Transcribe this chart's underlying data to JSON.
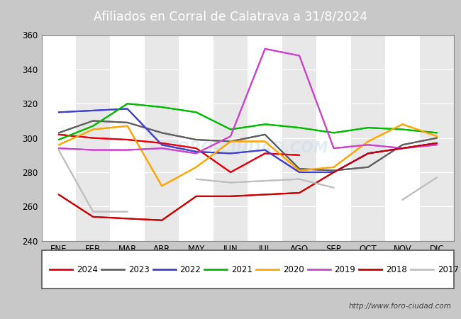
{
  "title": "Afiliados en Corral de Calatrava a 31/8/2024",
  "title_bg": "#4472c4",
  "watermark": "http://www.foro-ciudad.com",
  "ylim": [
    240,
    360
  ],
  "yticks": [
    240,
    260,
    280,
    300,
    320,
    340,
    360
  ],
  "months": [
    "ENE",
    "FEB",
    "MAR",
    "ABR",
    "MAY",
    "JUN",
    "JUL",
    "AGO",
    "SEP",
    "OCT",
    "NOV",
    "DIC"
  ],
  "series": {
    "2024": {
      "color": "#e8000d",
      "data": [
        302,
        300,
        299,
        297,
        294,
        280,
        291,
        290,
        null,
        null,
        null,
        null
      ]
    },
    "2023": {
      "color": "#606060",
      "data": [
        303,
        310,
        309,
        303,
        299,
        298,
        302,
        282,
        281,
        283,
        296,
        300
      ]
    },
    "2022": {
      "color": "#4040cc",
      "data": [
        315,
        316,
        317,
        296,
        292,
        291,
        293,
        280,
        280,
        291,
        294,
        297
      ]
    },
    "2021": {
      "color": "#00bb00",
      "data": [
        299,
        307,
        320,
        318,
        315,
        305,
        308,
        306,
        303,
        306,
        305,
        303
      ]
    },
    "2020": {
      "color": "#ffa500",
      "data": [
        296,
        305,
        307,
        272,
        283,
        298,
        298,
        281,
        283,
        298,
        308,
        301
      ]
    },
    "2019": {
      "color": "#cc44cc",
      "data": [
        294,
        293,
        293,
        294,
        291,
        301,
        352,
        348,
        294,
        296,
        294,
        296
      ]
    },
    "2018": {
      "color": "#cc0000",
      "data": [
        267,
        254,
        253,
        252,
        266,
        266,
        267,
        268,
        280,
        291,
        294,
        297
      ]
    },
    "2017": {
      "color": "#c0c0c0",
      "data": [
        293,
        257,
        257,
        null,
        276,
        274,
        275,
        276,
        271,
        null,
        264,
        277
      ]
    }
  },
  "legend_order": [
    "2024",
    "2023",
    "2022",
    "2021",
    "2020",
    "2019",
    "2018",
    "2017"
  ],
  "outer_bg": "#c8c8c8",
  "plot_bg": "#e8e8e8",
  "cell_bg": "#ffffff",
  "grid_color": "#ffffff"
}
